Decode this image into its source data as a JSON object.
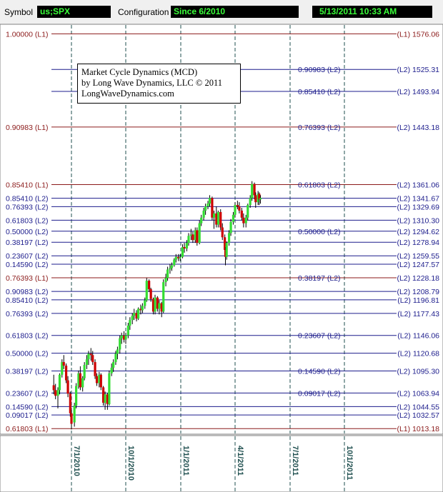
{
  "toolbar": {
    "symbol_label": "Symbol",
    "symbol_value": "us;SPX",
    "config_label": "Configuration",
    "config_value": "Since 6/2010",
    "datetime_value": "5/13/2011 10:33 AM"
  },
  "info_box": {
    "line1": "Market Cycle Dynamics (MCD)",
    "line2": "by Long Wave Dynamics, LLC © 2011",
    "line3": "LongWaveDynamics.com"
  },
  "colors": {
    "l1": "#8b1a1a",
    "l2": "#1c1c8c",
    "up_candle": "#33dd33",
    "down_candle": "#cc0000",
    "date_grid": "#1f4f4f"
  },
  "chart_data": {
    "type": "candlestick",
    "ylim": [
      1006,
      1590
    ],
    "x_dates": [
      "7/1/2010",
      "10/1/2010",
      "1/1/2011",
      "4/1/2011",
      "7/1/2011",
      "10/1/2011"
    ],
    "levels": [
      {
        "left": "1.00000 (L1)",
        "right": "(L1) 1576.06",
        "price": 1576.06,
        "kind": "L1"
      },
      {
        "mid": "0.90983 (L2)",
        "right": "(L2) 1525.31",
        "price": 1525.31,
        "kind": "L2"
      },
      {
        "mid": "0.85410 (L2)",
        "right": "(L2) 1493.94",
        "price": 1493.94,
        "kind": "L2"
      },
      {
        "left": "0.90983 (L1)",
        "mid": "0.76393 (L2)",
        "right": "(L2) 1443.18",
        "price": 1443.18,
        "kind": "L1"
      },
      {
        "left": "0.85410 (L1)",
        "mid": "0.61803 (L2)",
        "right": "(L2) 1361.06",
        "price": 1361.06,
        "kind": "L1"
      },
      {
        "left": "0.85410 (L2)",
        "right": "(L2) 1341.67",
        "price": 1341.67,
        "kind": "L2"
      },
      {
        "left": "0.76393 (L2)",
        "right": "(L2) 1329.69",
        "price": 1329.69,
        "kind": "L2"
      },
      {
        "left": "0.61803 (L2)",
        "right": "(L2) 1310.30",
        "price": 1310.3,
        "kind": "L2"
      },
      {
        "left": "0.50000 (L2)",
        "mid": "0.50000 (L2)",
        "right": "(L2) 1294.62",
        "price": 1294.62,
        "kind": "L2"
      },
      {
        "left": "0.38197 (L2)",
        "right": "(L2) 1278.94",
        "price": 1278.94,
        "kind": "L2"
      },
      {
        "left": "0.23607 (L2)",
        "right": "(L2) 1259.55",
        "price": 1259.55,
        "kind": "L2"
      },
      {
        "left": "0.14590 (L2)",
        "right": "(L2) 1247.57",
        "price": 1247.57,
        "kind": "L2"
      },
      {
        "left": "0.76393 (L1)",
        "mid": "0.38197 (L2)",
        "right": "(L2) 1228.18",
        "price": 1228.18,
        "kind": "L1"
      },
      {
        "left": "0.90983 (L2)",
        "right": "(L2) 1208.79",
        "price": 1208.79,
        "kind": "L2"
      },
      {
        "left": "0.85410 (L2)",
        "right": "(L2) 1196.81",
        "price": 1196.81,
        "kind": "L2"
      },
      {
        "left": "0.76393 (L2)",
        "right": "(L2) 1177.43",
        "price": 1177.43,
        "kind": "L2"
      },
      {
        "left": "0.61803 (L2)",
        "mid": "0.23607 (L2)",
        "right": "(L2) 1146.06",
        "price": 1146.06,
        "kind": "L2"
      },
      {
        "left": "0.50000 (L2)",
        "right": "(L2) 1120.68",
        "price": 1120.68,
        "kind": "L2"
      },
      {
        "left": "0.38197 (L2)",
        "mid": "0.14590 (L2)",
        "right": "(L2) 1095.30",
        "price": 1095.3,
        "kind": "L2"
      },
      {
        "left": "0.23607 (L2)",
        "mid": "0.09017 (L2)",
        "right": "(L2) 1063.94",
        "price": 1063.94,
        "kind": "L2"
      },
      {
        "left": "0.14590 (L2)",
        "right": "(L2) 1044.55",
        "price": 1044.55,
        "kind": "L2"
      },
      {
        "left": "0.09017 (L2)",
        "right": "(L2) 1032.57",
        "price": 1032.57,
        "kind": "L2"
      },
      {
        "left": "0.61803 (L1)",
        "right": "(L1) 1013.18",
        "price": 1013.18,
        "kind": "L1"
      }
    ],
    "candles": [
      {
        "date": "2010-06-01",
        "o": 1075,
        "h": 1090,
        "l": 1062,
        "c": 1068
      },
      {
        "date": "2010-06-04",
        "o": 1068,
        "h": 1077,
        "l": 1055,
        "c": 1060
      },
      {
        "date": "2010-06-08",
        "o": 1060,
        "h": 1072,
        "l": 1042,
        "c": 1068
      },
      {
        "date": "2010-06-11",
        "o": 1068,
        "h": 1092,
        "l": 1062,
        "c": 1090
      },
      {
        "date": "2010-06-15",
        "o": 1090,
        "h": 1112,
        "l": 1086,
        "c": 1108
      },
      {
        "date": "2010-06-18",
        "o": 1108,
        "h": 1118,
        "l": 1098,
        "c": 1103
      },
      {
        "date": "2010-06-22",
        "o": 1103,
        "h": 1106,
        "l": 1078,
        "c": 1082
      },
      {
        "date": "2010-06-25",
        "o": 1082,
        "h": 1088,
        "l": 1058,
        "c": 1063
      },
      {
        "date": "2010-06-29",
        "o": 1063,
        "h": 1066,
        "l": 1030,
        "c": 1035
      },
      {
        "date": "2010-07-01",
        "o": 1035,
        "h": 1040,
        "l": 1012,
        "c": 1020
      },
      {
        "date": "2010-07-06",
        "o": 1022,
        "h": 1050,
        "l": 1016,
        "c": 1046
      },
      {
        "date": "2010-07-09",
        "o": 1046,
        "h": 1078,
        "l": 1042,
        "c": 1074
      },
      {
        "date": "2010-07-13",
        "o": 1074,
        "h": 1096,
        "l": 1070,
        "c": 1092
      },
      {
        "date": "2010-07-16",
        "o": 1092,
        "h": 1102,
        "l": 1068,
        "c": 1072
      },
      {
        "date": "2010-07-20",
        "o": 1072,
        "h": 1088,
        "l": 1066,
        "c": 1085
      },
      {
        "date": "2010-07-23",
        "o": 1085,
        "h": 1108,
        "l": 1082,
        "c": 1104
      },
      {
        "date": "2010-07-27",
        "o": 1104,
        "h": 1118,
        "l": 1098,
        "c": 1112
      },
      {
        "date": "2010-07-30",
        "o": 1112,
        "h": 1124,
        "l": 1104,
        "c": 1120
      },
      {
        "date": "2010-08-03",
        "o": 1120,
        "h": 1128,
        "l": 1110,
        "c": 1118
      },
      {
        "date": "2010-08-06",
        "o": 1118,
        "h": 1124,
        "l": 1104,
        "c": 1108
      },
      {
        "date": "2010-08-10",
        "o": 1108,
        "h": 1112,
        "l": 1084,
        "c": 1088
      },
      {
        "date": "2010-08-13",
        "o": 1088,
        "h": 1092,
        "l": 1074,
        "c": 1078
      },
      {
        "date": "2010-08-17",
        "o": 1078,
        "h": 1094,
        "l": 1072,
        "c": 1090
      },
      {
        "date": "2010-08-20",
        "o": 1090,
        "h": 1092,
        "l": 1068,
        "c": 1072
      },
      {
        "date": "2010-08-24",
        "o": 1072,
        "h": 1074,
        "l": 1046,
        "c": 1050
      },
      {
        "date": "2010-08-27",
        "o": 1050,
        "h": 1066,
        "l": 1040,
        "c": 1062
      },
      {
        "date": "2010-08-31",
        "o": 1062,
        "h": 1064,
        "l": 1040,
        "c": 1048
      },
      {
        "date": "2010-09-03",
        "o": 1048,
        "h": 1096,
        "l": 1046,
        "c": 1092
      },
      {
        "date": "2010-09-07",
        "o": 1092,
        "h": 1106,
        "l": 1088,
        "c": 1100
      },
      {
        "date": "2010-09-10",
        "o": 1100,
        "h": 1112,
        "l": 1094,
        "c": 1108
      },
      {
        "date": "2010-09-14",
        "o": 1108,
        "h": 1124,
        "l": 1104,
        "c": 1120
      },
      {
        "date": "2010-09-17",
        "o": 1120,
        "h": 1130,
        "l": 1112,
        "c": 1126
      },
      {
        "date": "2010-09-21",
        "o": 1126,
        "h": 1146,
        "l": 1120,
        "c": 1142
      },
      {
        "date": "2010-09-24",
        "o": 1142,
        "h": 1150,
        "l": 1134,
        "c": 1146
      },
      {
        "date": "2010-09-28",
        "o": 1146,
        "h": 1152,
        "l": 1136,
        "c": 1140
      },
      {
        "date": "2010-10-01",
        "o": 1140,
        "h": 1150,
        "l": 1134,
        "c": 1146
      },
      {
        "date": "2010-10-05",
        "o": 1146,
        "h": 1164,
        "l": 1142,
        "c": 1160
      },
      {
        "date": "2010-10-08",
        "o": 1160,
        "h": 1172,
        "l": 1154,
        "c": 1168
      },
      {
        "date": "2010-10-12",
        "o": 1168,
        "h": 1178,
        "l": 1162,
        "c": 1174
      },
      {
        "date": "2010-10-15",
        "o": 1174,
        "h": 1184,
        "l": 1168,
        "c": 1178
      },
      {
        "date": "2010-10-19",
        "o": 1178,
        "h": 1182,
        "l": 1166,
        "c": 1170
      },
      {
        "date": "2010-10-22",
        "o": 1170,
        "h": 1186,
        "l": 1168,
        "c": 1184
      },
      {
        "date": "2010-10-26",
        "o": 1184,
        "h": 1190,
        "l": 1176,
        "c": 1182
      },
      {
        "date": "2010-10-29",
        "o": 1182,
        "h": 1192,
        "l": 1178,
        "c": 1188
      },
      {
        "date": "2010-11-02",
        "o": 1188,
        "h": 1200,
        "l": 1184,
        "c": 1196
      },
      {
        "date": "2010-11-05",
        "o": 1196,
        "h": 1228,
        "l": 1194,
        "c": 1224
      },
      {
        "date": "2010-11-09",
        "o": 1224,
        "h": 1226,
        "l": 1208,
        "c": 1212
      },
      {
        "date": "2010-11-12",
        "o": 1212,
        "h": 1214,
        "l": 1194,
        "c": 1198
      },
      {
        "date": "2010-11-16",
        "o": 1198,
        "h": 1200,
        "l": 1176,
        "c": 1180
      },
      {
        "date": "2010-11-19",
        "o": 1180,
        "h": 1204,
        "l": 1176,
        "c": 1200
      },
      {
        "date": "2010-11-23",
        "o": 1200,
        "h": 1202,
        "l": 1180,
        "c": 1184
      },
      {
        "date": "2010-11-26",
        "o": 1184,
        "h": 1196,
        "l": 1176,
        "c": 1192
      },
      {
        "date": "2010-11-30",
        "o": 1192,
        "h": 1194,
        "l": 1172,
        "c": 1180
      },
      {
        "date": "2010-12-03",
        "o": 1180,
        "h": 1226,
        "l": 1178,
        "c": 1222
      },
      {
        "date": "2010-12-07",
        "o": 1222,
        "h": 1234,
        "l": 1216,
        "c": 1228
      },
      {
        "date": "2010-12-10",
        "o": 1228,
        "h": 1244,
        "l": 1224,
        "c": 1240
      },
      {
        "date": "2010-12-14",
        "o": 1240,
        "h": 1248,
        "l": 1234,
        "c": 1242
      },
      {
        "date": "2010-12-17",
        "o": 1242,
        "h": 1250,
        "l": 1238,
        "c": 1246
      },
      {
        "date": "2010-12-21",
        "o": 1246,
        "h": 1256,
        "l": 1244,
        "c": 1254
      },
      {
        "date": "2010-12-24",
        "o": 1254,
        "h": 1262,
        "l": 1250,
        "c": 1258
      },
      {
        "date": "2010-12-28",
        "o": 1258,
        "h": 1262,
        "l": 1252,
        "c": 1256
      },
      {
        "date": "2010-12-31",
        "o": 1256,
        "h": 1262,
        "l": 1252,
        "c": 1258
      },
      {
        "date": "2011-01-04",
        "o": 1258,
        "h": 1276,
        "l": 1256,
        "c": 1272
      },
      {
        "date": "2011-01-07",
        "o": 1272,
        "h": 1278,
        "l": 1264,
        "c": 1270
      },
      {
        "date": "2011-01-11",
        "o": 1270,
        "h": 1282,
        "l": 1266,
        "c": 1278
      },
      {
        "date": "2011-01-14",
        "o": 1278,
        "h": 1292,
        "l": 1274,
        "c": 1288
      },
      {
        "date": "2011-01-18",
        "o": 1288,
        "h": 1298,
        "l": 1282,
        "c": 1290
      },
      {
        "date": "2011-01-21",
        "o": 1290,
        "h": 1294,
        "l": 1278,
        "c": 1282
      },
      {
        "date": "2011-01-25",
        "o": 1282,
        "h": 1300,
        "l": 1278,
        "c": 1296
      },
      {
        "date": "2011-01-28",
        "o": 1296,
        "h": 1300,
        "l": 1274,
        "c": 1278
      },
      {
        "date": "2011-02-01",
        "o": 1278,
        "h": 1310,
        "l": 1276,
        "c": 1306
      },
      {
        "date": "2011-02-04",
        "o": 1306,
        "h": 1318,
        "l": 1302,
        "c": 1314
      },
      {
        "date": "2011-02-08",
        "o": 1314,
        "h": 1328,
        "l": 1310,
        "c": 1324
      },
      {
        "date": "2011-02-11",
        "o": 1324,
        "h": 1334,
        "l": 1318,
        "c": 1330
      },
      {
        "date": "2011-02-15",
        "o": 1330,
        "h": 1338,
        "l": 1326,
        "c": 1334
      },
      {
        "date": "2011-02-18",
        "o": 1334,
        "h": 1346,
        "l": 1330,
        "c": 1342
      },
      {
        "date": "2011-02-22",
        "o": 1342,
        "h": 1344,
        "l": 1310,
        "c": 1314
      },
      {
        "date": "2011-02-25",
        "o": 1314,
        "h": 1324,
        "l": 1298,
        "c": 1320
      },
      {
        "date": "2011-03-01",
        "o": 1320,
        "h": 1330,
        "l": 1300,
        "c": 1304
      },
      {
        "date": "2011-03-04",
        "o": 1304,
        "h": 1324,
        "l": 1300,
        "c": 1322
      },
      {
        "date": "2011-03-08",
        "o": 1322,
        "h": 1326,
        "l": 1296,
        "c": 1300
      },
      {
        "date": "2011-03-11",
        "o": 1300,
        "h": 1306,
        "l": 1282,
        "c": 1286
      },
      {
        "date": "2011-03-15",
        "o": 1286,
        "h": 1290,
        "l": 1260,
        "c": 1268
      },
      {
        "date": "2011-03-16",
        "o": 1268,
        "h": 1272,
        "l": 1246,
        "c": 1258
      },
      {
        "date": "2011-03-18",
        "o": 1258,
        "h": 1280,
        "l": 1254,
        "c": 1278
      },
      {
        "date": "2011-03-22",
        "o": 1278,
        "h": 1296,
        "l": 1274,
        "c": 1292
      },
      {
        "date": "2011-03-25",
        "o": 1292,
        "h": 1312,
        "l": 1288,
        "c": 1308
      },
      {
        "date": "2011-03-29",
        "o": 1308,
        "h": 1322,
        "l": 1304,
        "c": 1318
      },
      {
        "date": "2011-04-01",
        "o": 1318,
        "h": 1336,
        "l": 1314,
        "c": 1332
      },
      {
        "date": "2011-04-05",
        "o": 1332,
        "h": 1338,
        "l": 1326,
        "c": 1330
      },
      {
        "date": "2011-04-08",
        "o": 1330,
        "h": 1336,
        "l": 1320,
        "c": 1324
      },
      {
        "date": "2011-04-12",
        "o": 1324,
        "h": 1328,
        "l": 1310,
        "c": 1314
      },
      {
        "date": "2011-04-15",
        "o": 1314,
        "h": 1320,
        "l": 1300,
        "c": 1306
      },
      {
        "date": "2011-04-19",
        "o": 1306,
        "h": 1318,
        "l": 1300,
        "c": 1314
      },
      {
        "date": "2011-04-22",
        "o": 1314,
        "h": 1334,
        "l": 1310,
        "c": 1332
      },
      {
        "date": "2011-04-26",
        "o": 1332,
        "h": 1346,
        "l": 1328,
        "c": 1342
      },
      {
        "date": "2011-04-29",
        "o": 1342,
        "h": 1366,
        "l": 1338,
        "c": 1362
      },
      {
        "date": "2011-05-03",
        "o": 1362,
        "h": 1364,
        "l": 1340,
        "c": 1346
      },
      {
        "date": "2011-05-05",
        "o": 1346,
        "h": 1350,
        "l": 1328,
        "c": 1336
      },
      {
        "date": "2011-05-09",
        "o": 1336,
        "h": 1352,
        "l": 1332,
        "c": 1348
      },
      {
        "date": "2011-05-11",
        "o": 1348,
        "h": 1350,
        "l": 1332,
        "c": 1340
      },
      {
        "date": "2011-05-13",
        "o": 1340,
        "h": 1346,
        "l": 1334,
        "c": 1342
      }
    ]
  }
}
